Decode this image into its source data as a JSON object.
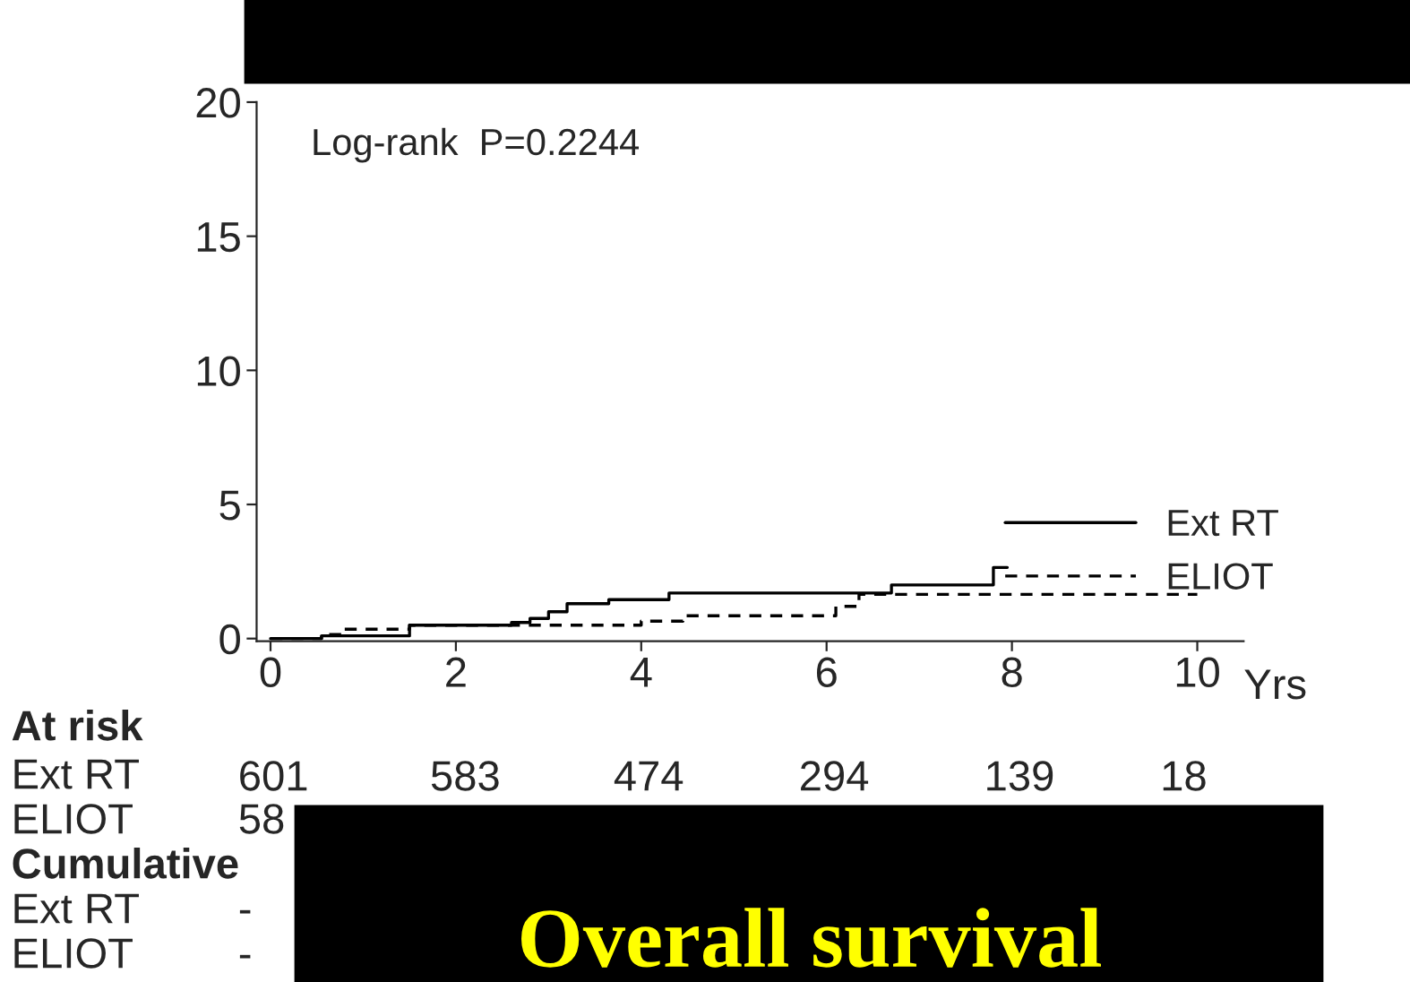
{
  "chart_data": {
    "type": "step",
    "title": "Overall survival",
    "xlabel": "Yrs",
    "x": [
      0,
      0.55,
      1.5,
      2.6,
      2.8,
      3.0,
      3.2,
      3.65,
      4.3,
      6.4,
      6.7,
      7.8,
      7.95
    ],
    "series": [
      {
        "name": "Ext RT",
        "color": "#000000",
        "line_style": "solid",
        "values": [
          0,
          0.1,
          0.5,
          0.6,
          0.75,
          1.0,
          1.3,
          1.45,
          1.7,
          1.7,
          2.0,
          2.65,
          2.65
        ]
      },
      {
        "name": "ELIOT",
        "color": "#000000",
        "line_style": "dashed",
        "x": [
          0,
          0.55,
          0.8,
          1.5,
          4.0,
          4.45,
          6.1,
          6.35,
          10
        ],
        "values": [
          0,
          0.15,
          0.35,
          0.5,
          0.65,
          0.85,
          1.2,
          1.65,
          1.65
        ]
      }
    ],
    "xlim": [
      -0.15,
      10.5
    ],
    "ylim": [
      -0.1,
      20
    ],
    "xticks": [
      0,
      2,
      4,
      6,
      8,
      10
    ],
    "yticks": [
      0,
      5,
      10,
      15,
      20
    ],
    "legend": "bottom right",
    "grid": false,
    "annotations": [
      "Log-rank  P=0.2244",
      "At risk",
      "Ext RT",
      "601",
      "583",
      "474",
      "294",
      "139",
      "18",
      "ELIOT",
      "58",
      "Cumulative",
      "Ext RT",
      "-",
      "ELIOT",
      "-"
    ]
  }
}
